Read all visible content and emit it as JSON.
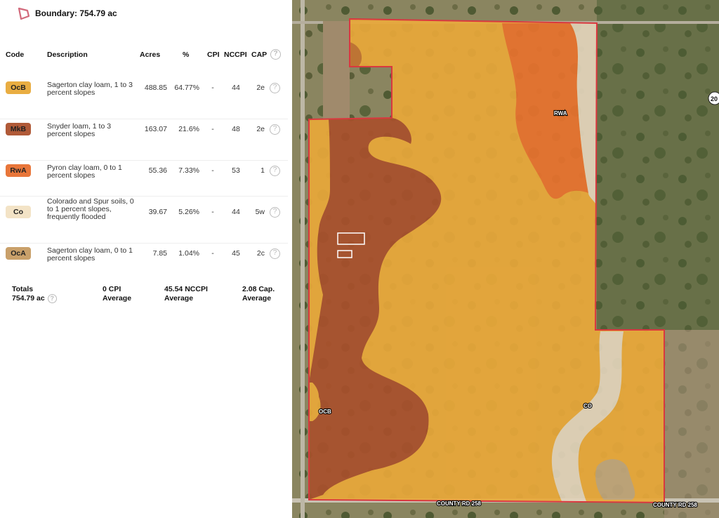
{
  "boundary": {
    "label": "Boundary: 754.79 ac",
    "icon": "polygon-icon"
  },
  "table": {
    "headers": {
      "code": "Code",
      "description": "Description",
      "acres": "Acres",
      "pct": "%",
      "cpi": "CPI",
      "nccpi": "NCCPI",
      "cap": "CAP"
    },
    "rows": [
      {
        "code": "OcB",
        "color": "#e9ad42",
        "description": "Sagerton clay loam, 1 to 3 percent slopes",
        "acres": "488.85",
        "pct": "64.77%",
        "cpi": "-",
        "nccpi": "44",
        "cap": "2e"
      },
      {
        "code": "MkB",
        "color": "#b05a38",
        "description": "Snyder loam, 1 to 3 percent slopes",
        "acres": "163.07",
        "pct": "21.6%",
        "cpi": "-",
        "nccpi": "48",
        "cap": "2e"
      },
      {
        "code": "RwA",
        "color": "#e8763a",
        "description": "Pyron clay loam, 0 to 1 percent slopes",
        "acres": "55.36",
        "pct": "7.33%",
        "cpi": "-",
        "nccpi": "53",
        "cap": "1"
      },
      {
        "code": "Co",
        "color": "#f3e3c6",
        "description": "Colorado and Spur soils, 0 to 1 percent slopes, frequently flooded",
        "acres": "39.67",
        "pct": "5.26%",
        "cpi": "-",
        "nccpi": "44",
        "cap": "5w"
      },
      {
        "code": "OcA",
        "color": "#c9a06a",
        "description": "Sagerton clay loam, 0 to 1 percent slopes",
        "acres": "7.85",
        "pct": "1.04%",
        "cpi": "-",
        "nccpi": "45",
        "cap": "2c"
      }
    ],
    "totals": {
      "label": "Totals",
      "acres": "754.79 ac",
      "cpi": "0 CPI",
      "cpi_sub": "Average",
      "nccpi": "45.54 NCCPI",
      "nccpi_sub": "Average",
      "cap": "2.08 Cap.",
      "cap_sub": "Average"
    }
  },
  "map": {
    "labels": {
      "rwa": "RWA",
      "ocb": "OCB",
      "co": "CO",
      "road1": "COUNTY RD 258",
      "road2": "COUNTY RD 258",
      "shield": "20"
    },
    "colors": {
      "boundary": "#d9383f",
      "ocb": "#e9a83a",
      "mkb": "#a9502c",
      "rwa": "#e8722e",
      "co": "#e2d4bb"
    }
  }
}
